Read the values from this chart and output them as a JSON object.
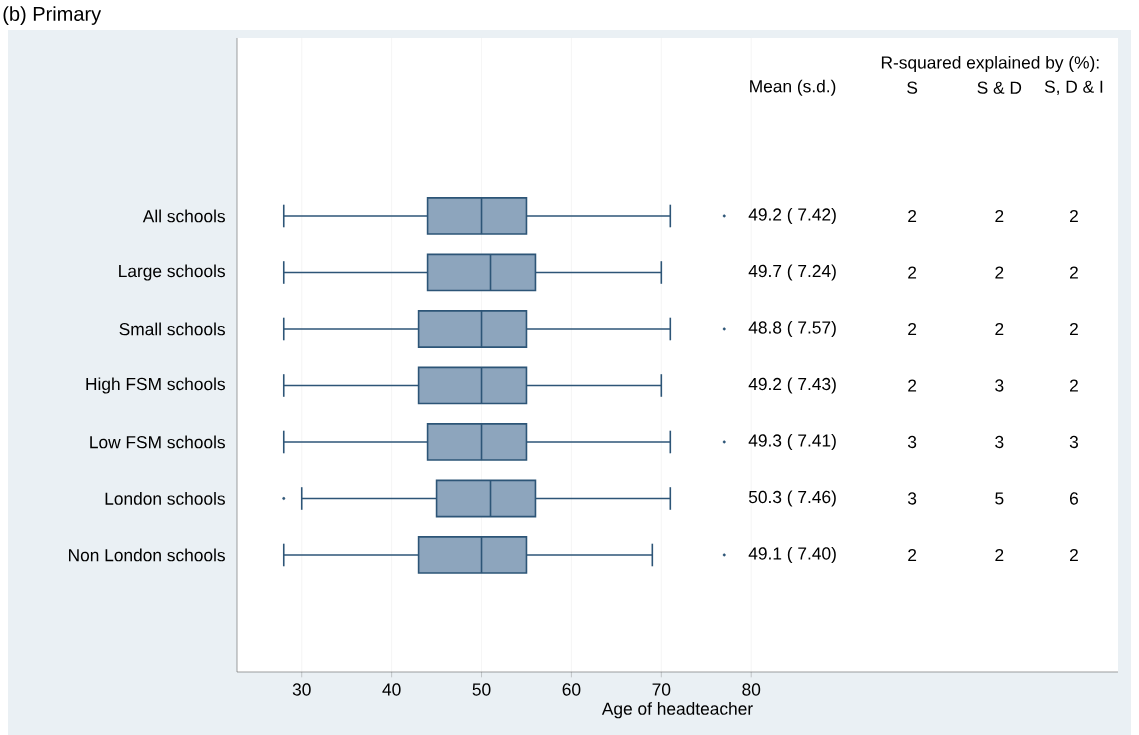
{
  "chart_data": {
    "type": "box",
    "orientation": "horizontal",
    "title": "(b) Primary",
    "xlabel": "Age of headteacher",
    "color": "#8da5bd",
    "grid": "x",
    "categories": [
      "All schools",
      "Large schools",
      "Small schools",
      "High FSM schools",
      "Low FSM schools",
      "London schools",
      "Non London schools"
    ],
    "boxes": [
      {
        "low": 28,
        "q1": 44,
        "median": 50,
        "q3": 55,
        "high": 71,
        "outliers": [
          77
        ]
      },
      {
        "low": 28,
        "q1": 44,
        "median": 51,
        "q3": 56,
        "high": 70
      },
      {
        "low": 28,
        "q1": 43,
        "median": 50,
        "q3": 55,
        "high": 71,
        "outliers": [
          77
        ]
      },
      {
        "low": 28,
        "q1": 43,
        "median": 50,
        "q3": 55,
        "high": 70
      },
      {
        "low": 28,
        "q1": 44,
        "median": 50,
        "q3": 55,
        "high": 71,
        "outliers": [
          77
        ]
      },
      {
        "low": 30,
        "q1": 45,
        "median": 51,
        "q3": 56,
        "high": 71,
        "outliers": [
          28
        ]
      },
      {
        "low": 28,
        "q1": 43,
        "median": 50,
        "q3": 55,
        "high": 69,
        "outliers": [
          77
        ]
      }
    ],
    "xlim": [
      22.8,
      120.8
    ],
    "xticks": [
      30,
      40,
      50,
      60,
      70,
      80
    ],
    "annotations": [
      "R-squared explained by (%):",
      "Mean (s.d.)",
      "S",
      "S & D",
      "S, D & I",
      "49.2 ( 7.42)",
      "2",
      "2",
      "2",
      "49.7 ( 7.24)",
      "2",
      "2",
      "2",
      "48.8 ( 7.57)",
      "2",
      "2",
      "2",
      "49.2 ( 7.43)",
      "2",
      "3",
      "2",
      "49.3 ( 7.41)",
      "3",
      "3",
      "3",
      "50.3 ( 7.46)",
      "3",
      "5",
      "6",
      "49.1 ( 7.40)",
      "2",
      "2",
      "2"
    ]
  }
}
